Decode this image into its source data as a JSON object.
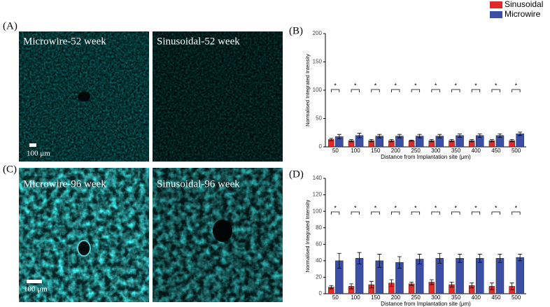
{
  "panels": [
    {
      "label": "(A)",
      "images": [
        "Microwire-52 week",
        "Sinusoidal-52 week"
      ],
      "scale_bar": "100  μm"
    },
    {
      "label": "(C)",
      "images": [
        "Microwire-96 week",
        "Sinusoidal-96 week"
      ],
      "scale_bar": "100  μm"
    }
  ],
  "chart_data": [
    {
      "type": "bar",
      "label": "(B)",
      "y_label": "Normalised Integrated Intensity",
      "x_label": "Distance from Implantation site (μm)",
      "categories": [
        "50",
        "100",
        "150",
        "200",
        "250",
        "300",
        "350",
        "400",
        "450",
        "500"
      ],
      "series": [
        {
          "name": "Sinusoidal",
          "color": "#e02a2a",
          "values": [
            13,
            11,
            11,
            11,
            11,
            11,
            11,
            11,
            11,
            11
          ],
          "errors": [
            2,
            2,
            2,
            2,
            1,
            2,
            2,
            2,
            2,
            2
          ]
        },
        {
          "name": "Microwire",
          "color": "#3b4fa6",
          "values": [
            18,
            20,
            19,
            19,
            19,
            19,
            20,
            20,
            20,
            23
          ],
          "errors": [
            4,
            4,
            3,
            3,
            3,
            3,
            3,
            3,
            3,
            3
          ]
        }
      ],
      "annotations": [
        "*",
        "*",
        "*",
        "*",
        "*",
        "*",
        "*",
        "*",
        "*",
        "*"
      ],
      "ylim": [
        0,
        200
      ],
      "yticks": [
        0,
        50,
        100,
        150,
        200
      ]
    },
    {
      "type": "bar",
      "label": "(D)",
      "y_label": "Normalised Integrated Intensity",
      "x_label": "Distance from Implantation site (μm)",
      "categories": [
        "50",
        "100",
        "150",
        "200",
        "250",
        "300",
        "350",
        "400",
        "450",
        "500"
      ],
      "series": [
        {
          "name": "Sinusoidal",
          "color": "#e02a2a",
          "values": [
            8,
            9,
            11,
            13,
            12,
            14,
            11,
            10,
            9,
            9
          ],
          "errors": [
            2,
            3,
            4,
            4,
            2,
            3,
            3,
            3,
            4,
            4
          ]
        },
        {
          "name": "Microwire",
          "color": "#3b4fa6",
          "values": [
            40,
            43,
            40,
            38,
            42,
            43,
            43,
            43,
            43,
            44
          ],
          "errors": [
            9,
            7,
            8,
            7,
            6,
            6,
            5,
            5,
            5,
            4
          ]
        }
      ],
      "annotations": [
        "*",
        "*",
        "*",
        "*",
        "*",
        "*",
        "*",
        "*",
        "*",
        "*"
      ],
      "ylim": [
        0,
        140
      ],
      "yticks": [
        0,
        20,
        40,
        60,
        80,
        100,
        120,
        140
      ]
    }
  ]
}
